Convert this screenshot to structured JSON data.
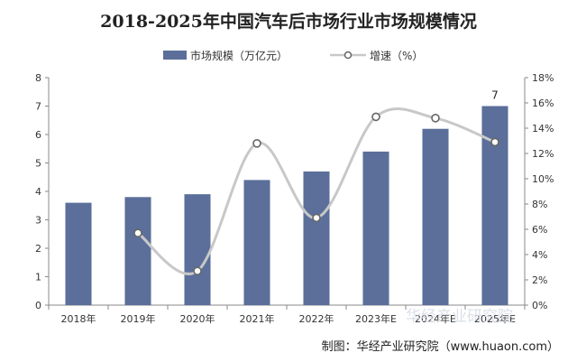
{
  "chart_data": {
    "type": "bar",
    "title": "2018-2025年中国汽车后市场行业市场规模情况",
    "categories": [
      "2018年",
      "2019年",
      "2020年",
      "2021年",
      "2022年",
      "2023年E",
      "2024年E",
      "2025年E"
    ],
    "series": [
      {
        "name": "市场规模（万亿元）",
        "type": "bar",
        "axis": "left",
        "values": [
          3.6,
          3.8,
          3.9,
          4.4,
          4.7,
          5.4,
          6.2,
          7.0
        ],
        "color": "#5b6f9a"
      },
      {
        "name": "增速（%）",
        "type": "line",
        "axis": "right",
        "values": [
          null,
          5.7,
          2.7,
          12.8,
          6.9,
          14.9,
          14.8,
          12.9
        ],
        "color": "#c8c8c8",
        "marker_color": "#666666"
      }
    ],
    "y_left": {
      "min": 0,
      "max": 8,
      "ticks": [
        "0",
        "1",
        "2",
        "3",
        "4",
        "5",
        "6",
        "7",
        "8"
      ]
    },
    "y_right": {
      "min": 0,
      "max": 18,
      "ticks": [
        "0%",
        "2%",
        "4%",
        "6%",
        "8%",
        "10%",
        "12%",
        "14%",
        "16%",
        "18%"
      ]
    },
    "data_labels": [
      {
        "category_index": 7,
        "text": "7"
      }
    ],
    "legend_position": "top",
    "grid": false
  },
  "source": "制图：华经产业研究院（www.huaon.com）",
  "watermark": "华经产业研究院"
}
